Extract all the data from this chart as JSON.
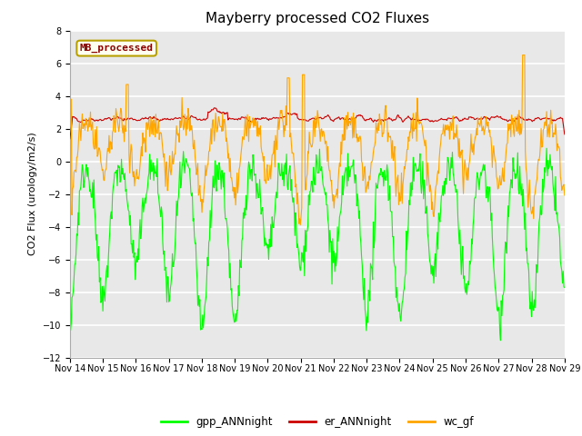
{
  "title": "Mayberry processed CO2 Fluxes",
  "ylabel": "CO2 Flux (urology/m2/s)",
  "ylim": [
    -12,
    8
  ],
  "yticks": [
    -12,
    -10,
    -8,
    -6,
    -4,
    -2,
    0,
    2,
    4,
    6,
    8
  ],
  "date_start": 14,
  "date_end": 29,
  "n_points": 720,
  "colors": {
    "gpp": "#00ff00",
    "er": "#cc0000",
    "wc": "#ffa500"
  },
  "legend_labels": [
    "gpp_ANNnight",
    "er_ANNnight",
    "wc_gf"
  ],
  "inset_label": "MB_processed",
  "inset_label_color": "#8b0000",
  "inset_bg": "#fffff0",
  "inset_border": "#b8a000",
  "plot_bg": "#e8e8e8",
  "fig_bg": "#ffffff",
  "grid_color": "#ffffff",
  "title_fontsize": 11,
  "axis_fontsize": 8,
  "tick_fontsize": 7
}
